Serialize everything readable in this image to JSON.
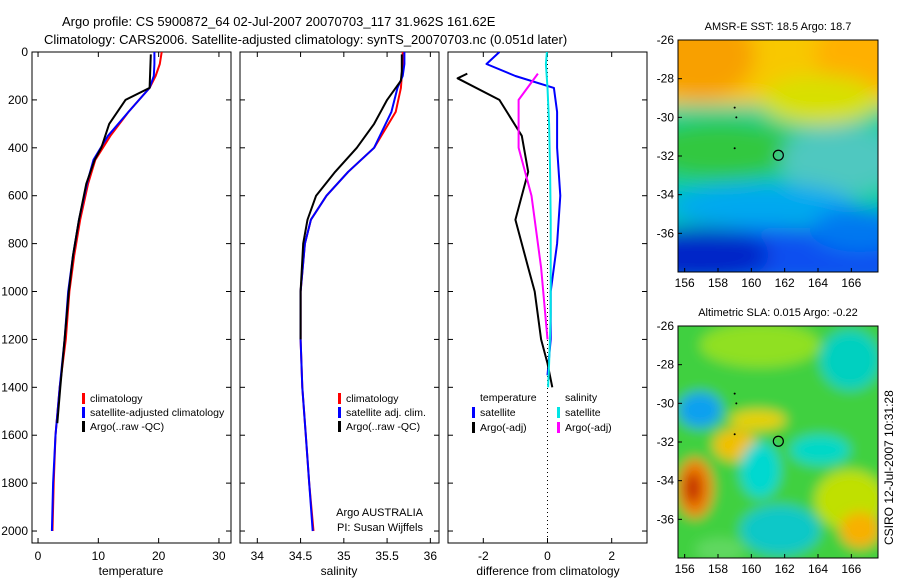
{
  "header": {
    "title_line1": "Argo profile: CS 5900872_64 02-Jul-2007 20070703_117 31.962S 161.62E",
    "title_line2": "Climatology: CARS2006. Satellite-adjusted climatology: synTS_20070703.nc (0.051d later)"
  },
  "colors": {
    "climatology": "#ff0000",
    "satellite": "#0000ff",
    "argo": "#000000",
    "satellite_salinity": "#00e5e5",
    "argo_salinity_adj": "#ff00ff"
  },
  "chart_data": [
    {
      "type": "line",
      "panel": "temperature",
      "xlabel": "temperature",
      "ylabel": "",
      "xlim": [
        -1,
        32
      ],
      "ylim": [
        2050,
        0
      ],
      "xticks": [
        0,
        10,
        20,
        30
      ],
      "yticks": [
        0,
        200,
        400,
        600,
        800,
        1000,
        1200,
        1400,
        1600,
        1800,
        2000
      ],
      "legend": [
        "climatology",
        "satellite-adjusted climatology",
        "Argo(..raw -QC)"
      ],
      "legend_placement": "lower-right",
      "series": [
        {
          "name": "climatology",
          "color": "#ff0000",
          "x": [
            20.5,
            20.2,
            19.5,
            18.5,
            15.0,
            12.0,
            9.5,
            8.3,
            7.0,
            6.0,
            5.2,
            4.6,
            3.6,
            2.9,
            2.6,
            2.4
          ],
          "y": [
            0,
            50,
            100,
            150,
            250,
            350,
            450,
            550,
            700,
            850,
            1000,
            1200,
            1400,
            1600,
            1800,
            2000
          ]
        },
        {
          "name": "satellite-adjusted climatology",
          "color": "#0000ff",
          "x": [
            19.3,
            19.3,
            19.2,
            18.5,
            15.0,
            11.6,
            9.2,
            8.1,
            6.8,
            5.8,
            5.0,
            4.4,
            3.6,
            2.9,
            2.5,
            2.3
          ],
          "y": [
            0,
            50,
            100,
            150,
            250,
            350,
            450,
            550,
            700,
            850,
            1000,
            1200,
            1400,
            1600,
            1800,
            2000
          ]
        },
        {
          "name": "Argo(..raw -QC)",
          "color": "#000000",
          "x": [
            18.7,
            18.6,
            18.5,
            14.5,
            11.8,
            10.5,
            9.4,
            8.0,
            6.8,
            5.8,
            5.1,
            4.4,
            3.7,
            3.2
          ],
          "y": [
            10,
            80,
            150,
            200,
            300,
            400,
            450,
            550,
            700,
            850,
            1000,
            1200,
            1400,
            1550
          ]
        }
      ]
    },
    {
      "type": "line",
      "panel": "salinity",
      "xlabel": "salinity",
      "ylabel": "",
      "xlim": [
        33.8,
        36.1
      ],
      "ylim": [
        2050,
        0
      ],
      "xticks": [
        34,
        34.5,
        35,
        35.5,
        36
      ],
      "legend": [
        "climatology",
        "satellite adj. clim.",
        "Argo(..raw -QC)"
      ],
      "legend_placement": "lower-right",
      "annotations": [
        "Argo AUSTRALIA",
        "PI: Susan Wijffels"
      ],
      "series": [
        {
          "name": "climatology",
          "color": "#ff0000",
          "x": [
            35.68,
            35.68,
            35.67,
            35.66,
            35.6,
            35.35,
            35.05,
            34.8,
            34.62,
            34.55,
            34.5,
            34.5,
            34.52,
            34.56,
            34.6,
            34.65
          ],
          "y": [
            0,
            50,
            100,
            150,
            250,
            400,
            500,
            600,
            700,
            800,
            1000,
            1200,
            1400,
            1600,
            1800,
            2000
          ]
        },
        {
          "name": "satellite adj. clim.",
          "color": "#0000ff",
          "x": [
            35.7,
            35.7,
            35.68,
            35.62,
            35.55,
            35.35,
            35.05,
            34.8,
            34.62,
            34.55,
            34.5,
            34.5,
            34.52,
            34.56,
            34.6,
            34.64
          ],
          "y": [
            0,
            50,
            100,
            150,
            250,
            400,
            500,
            600,
            700,
            800,
            1000,
            1200,
            1400,
            1600,
            1800,
            2000
          ]
        },
        {
          "name": "Argo(..raw -QC)",
          "color": "#000000",
          "x": [
            35.67,
            35.67,
            35.66,
            35.5,
            35.35,
            35.15,
            34.9,
            34.68,
            34.58,
            34.53,
            34.5,
            34.5
          ],
          "y": [
            10,
            80,
            120,
            200,
            300,
            400,
            500,
            600,
            700,
            800,
            1000,
            1200
          ]
        }
      ]
    },
    {
      "type": "line",
      "panel": "difference",
      "xlabel": "difference from climatology",
      "ylabel": "",
      "xlim": [
        -3.1,
        3.1
      ],
      "ylim": [
        2050,
        0
      ],
      "xticks": [
        -2,
        0,
        2
      ],
      "legend_groups": [
        {
          "title": "temperature",
          "items": [
            "satellite",
            "Argo(-adj)"
          ]
        },
        {
          "title": "salinity",
          "items": [
            "satellite",
            "Argo(-adj)"
          ]
        }
      ],
      "legend_placement": "lower",
      "series": [
        {
          "name": "temperature satellite",
          "color": "#0000ff",
          "x": [
            -1.5,
            -1.9,
            -1.0,
            0.2,
            0.3,
            0.3,
            0.4,
            0.3,
            0.1,
            0.1,
            0.0
          ],
          "y": [
            0,
            50,
            100,
            150,
            250,
            400,
            600,
            800,
            1000,
            1200,
            1350
          ]
        },
        {
          "name": "temperature Argo(-adj)",
          "color": "#000000",
          "x": [
            -2.5,
            -2.8,
            -1.5,
            -0.8,
            -0.6,
            -0.8,
            -1.0,
            -0.6,
            -0.4,
            -0.2,
            0.0,
            0.15
          ],
          "y": [
            90,
            110,
            200,
            350,
            500,
            600,
            700,
            900,
            1000,
            1200,
            1300,
            1400
          ]
        },
        {
          "name": "salinity satellite",
          "color": "#00e5e5",
          "x": [
            -0.02,
            -0.05,
            0.0,
            0.05,
            0.08,
            0.1,
            0.1,
            0.1,
            0.05,
            0.02
          ],
          "y": [
            0,
            50,
            150,
            300,
            500,
            700,
            900,
            1100,
            1300,
            1400
          ]
        },
        {
          "name": "salinity Argo(-adj)",
          "color": "#ff00ff",
          "x": [
            -0.3,
            -0.9,
            -0.9,
            -0.5,
            -0.2,
            0.0
          ],
          "y": [
            90,
            200,
            400,
            600,
            900,
            1200
          ]
        }
      ],
      "reference_line": {
        "x": 0,
        "style": "dotted"
      }
    },
    {
      "type": "heatmap",
      "panel": "map",
      "title": "AMSR-E SST: 18.5 Argo: 18.7",
      "xlim": [
        155.6,
        167.6
      ],
      "ylim": [
        -38.0,
        -26.0
      ],
      "xticks": [
        156,
        158,
        160,
        162,
        164,
        166
      ],
      "yticks": [
        -26,
        -28,
        -30,
        -32,
        -34,
        -36
      ],
      "marker": {
        "lon": 161.62,
        "lat": -31.962
      }
    },
    {
      "type": "heatmap",
      "panel": "map",
      "title": "Altimetric SLA: 0.015 Argo: -0.22",
      "xlim": [
        155.6,
        167.6
      ],
      "ylim": [
        -38.0,
        -26.0
      ],
      "xticks": [
        156,
        158,
        160,
        162,
        164,
        166
      ],
      "yticks": [
        -26,
        -28,
        -30,
        -32,
        -34,
        -36
      ],
      "marker": {
        "lon": 161.62,
        "lat": -31.962
      }
    }
  ],
  "side_stamp": "CSIRO 12-Jul-2007 10:31:28"
}
